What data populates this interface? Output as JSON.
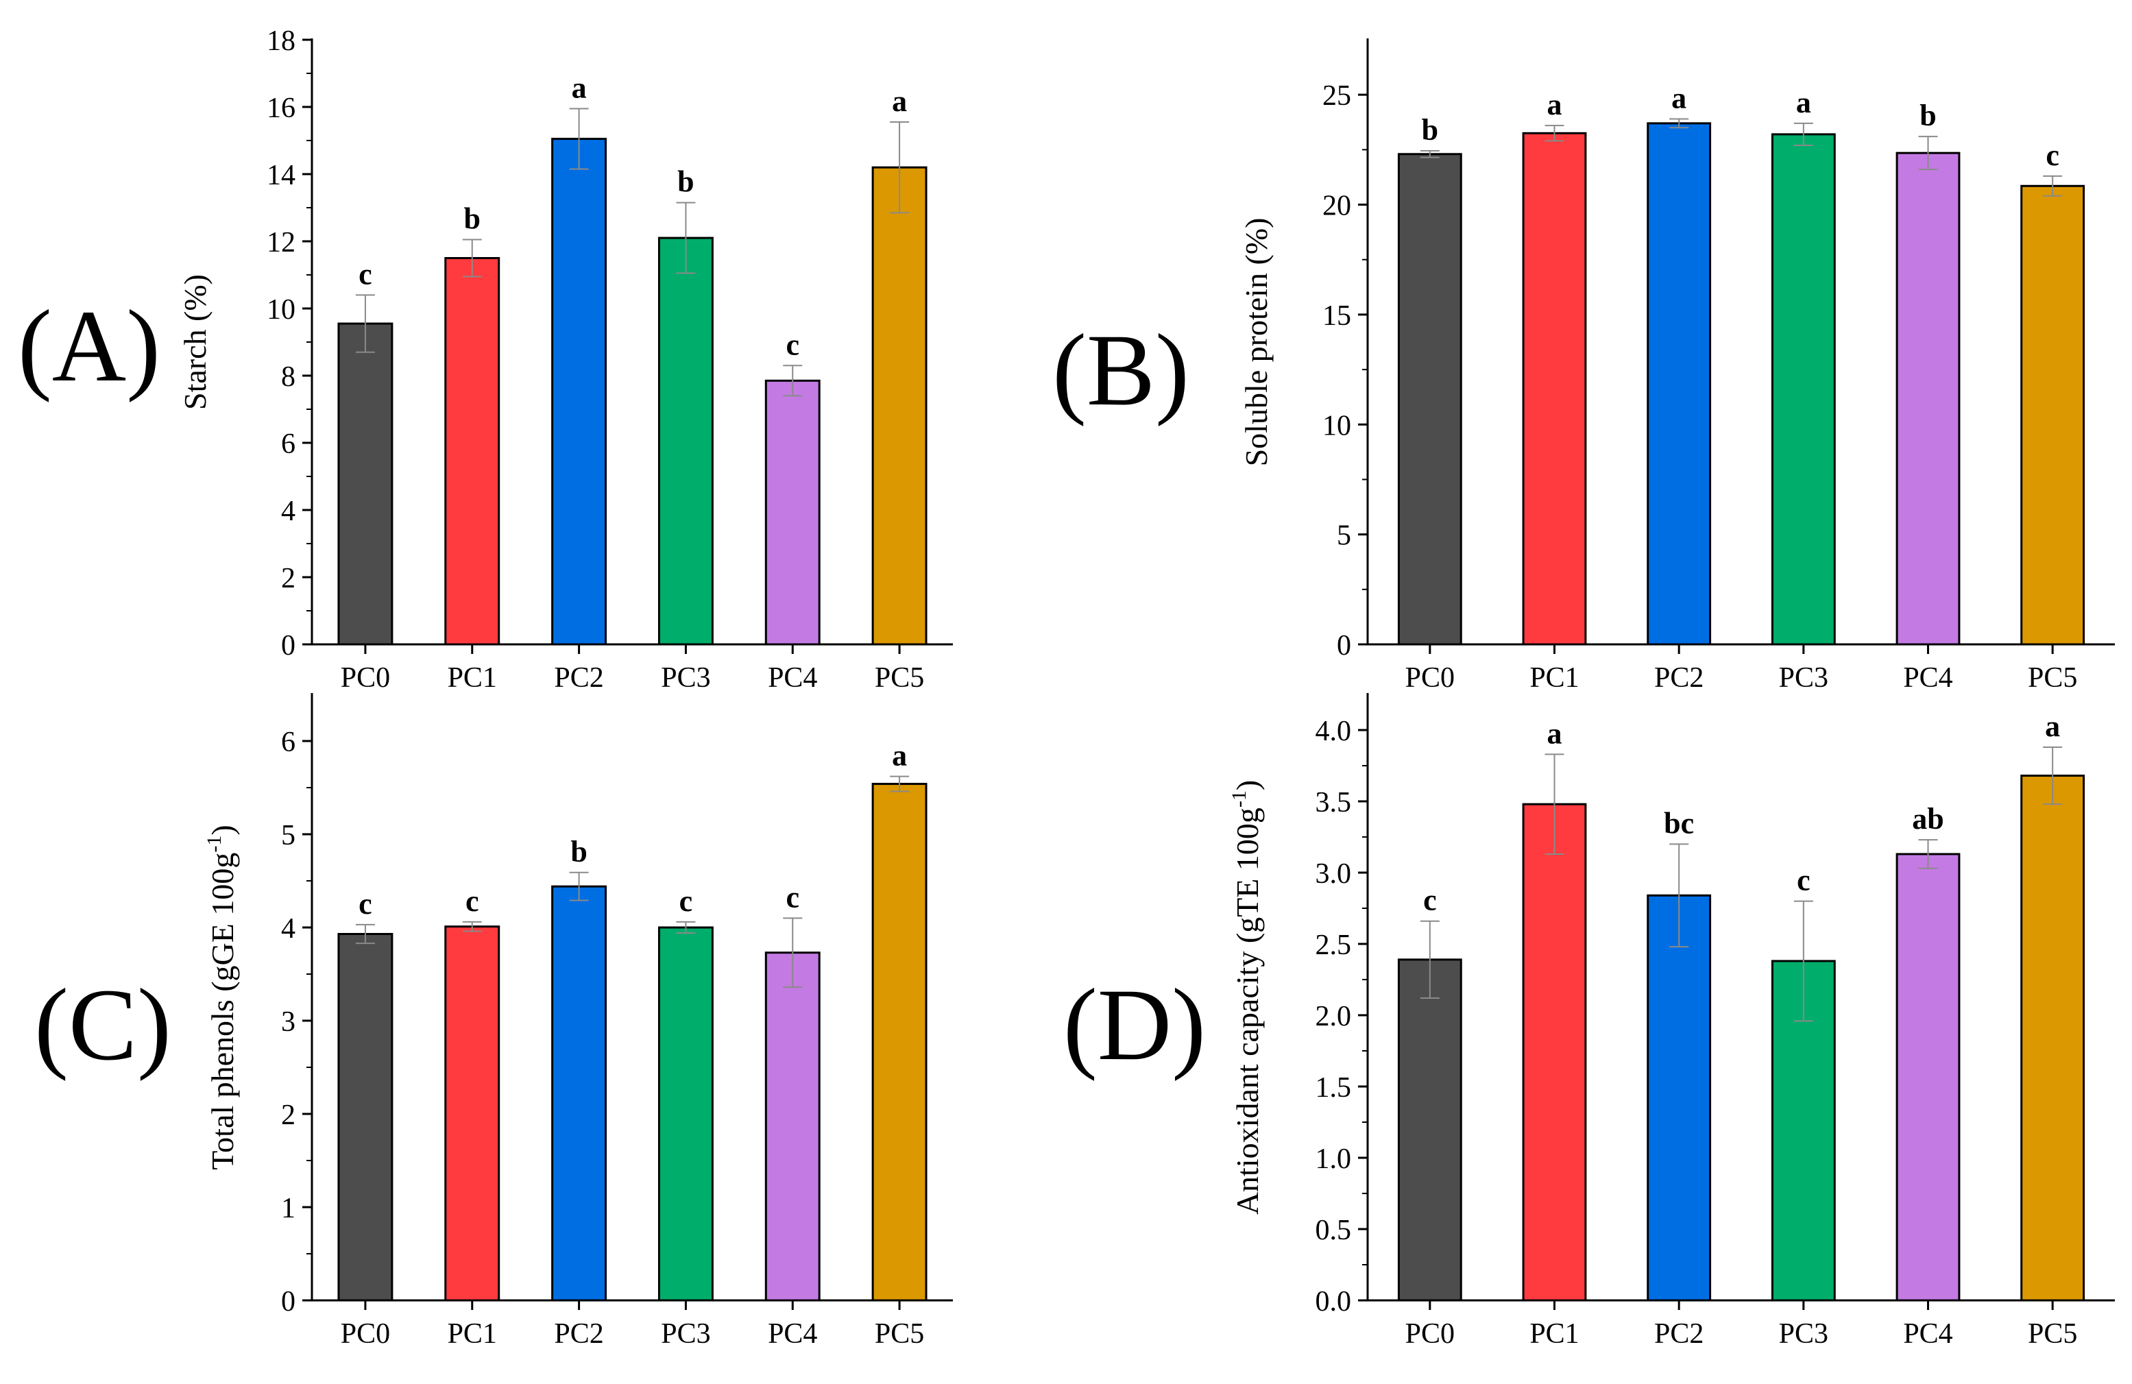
{
  "chart_data": [
    {
      "type": "bar",
      "panel_label": "(A)",
      "ylabel": "Starch (%)",
      "ylabel_superscript": "",
      "ylabel_suffix": "",
      "categories": [
        "PC0",
        "PC1",
        "PC2",
        "PC3",
        "PC4",
        "PC5"
      ],
      "values": [
        9.55,
        11.5,
        15.05,
        12.1,
        7.85,
        14.2
      ],
      "errors": [
        0.85,
        0.55,
        0.9,
        1.05,
        0.45,
        1.35
      ],
      "significance": [
        "c",
        "b",
        "a",
        "b",
        "c",
        "a"
      ],
      "ylim": [
        0,
        18
      ],
      "yticks": [
        0,
        2,
        4,
        6,
        8,
        10,
        12,
        14,
        16,
        18
      ],
      "ytick_labels": [
        "0",
        "2",
        "4",
        "6",
        "8",
        "10",
        "12",
        "14",
        "16",
        "18"
      ]
    },
    {
      "type": "bar",
      "panel_label": "(B)",
      "ylabel": "Soluble protein (%)",
      "ylabel_superscript": "",
      "ylabel_suffix": "",
      "categories": [
        "PC0",
        "PC1",
        "PC2",
        "PC3",
        "PC4",
        "PC5"
      ],
      "values": [
        22.3,
        23.25,
        23.7,
        23.2,
        22.35,
        20.85
      ],
      "errors": [
        0.15,
        0.35,
        0.2,
        0.5,
        0.75,
        0.45
      ],
      "significance": [
        "b",
        "a",
        "a",
        "a",
        "b",
        "c"
      ],
      "ylim": [
        0,
        27.5
      ],
      "yticks": [
        0,
        5,
        10,
        15,
        20,
        25
      ],
      "ytick_labels": [
        "0",
        "5",
        "10",
        "15",
        "20",
        "25"
      ]
    },
    {
      "type": "bar",
      "panel_label": "(C)",
      "ylabel": "Total phenols (gGE 100g",
      "ylabel_superscript": "-1",
      "ylabel_suffix": ")",
      "categories": [
        "PC0",
        "PC1",
        "PC2",
        "PC3",
        "PC4",
        "PC5"
      ],
      "values": [
        3.93,
        4.01,
        4.44,
        4.0,
        3.73,
        5.54
      ],
      "errors": [
        0.1,
        0.05,
        0.15,
        0.06,
        0.37,
        0.08
      ],
      "significance": [
        "c",
        "c",
        "b",
        "c",
        "c",
        "a"
      ],
      "ylim": [
        0,
        6.5
      ],
      "yticks": [
        0,
        1,
        2,
        3,
        4,
        5,
        6
      ],
      "ytick_labels": [
        "0",
        "1",
        "2",
        "3",
        "4",
        "5",
        "6"
      ]
    },
    {
      "type": "bar",
      "panel_label": "(D)",
      "ylabel": "Antioxidant capacity (gTE 100g",
      "ylabel_superscript": "-1",
      "ylabel_suffix": ")",
      "categories": [
        "PC0",
        "PC1",
        "PC2",
        "PC3",
        "PC4",
        "PC5"
      ],
      "values": [
        2.39,
        3.48,
        2.84,
        2.38,
        3.13,
        3.68
      ],
      "errors": [
        0.27,
        0.35,
        0.36,
        0.42,
        0.1,
        0.2
      ],
      "significance": [
        "c",
        "a",
        "bc",
        "c",
        "ab",
        "a"
      ],
      "ylim": [
        0,
        4.25
      ],
      "yticks": [
        0,
        0.5,
        1,
        1.5,
        2,
        2.5,
        3,
        3.5,
        4
      ],
      "ytick_labels": [
        "0.0",
        "0.5",
        "1.0",
        "1.5",
        "2.0",
        "2.5",
        "3.0",
        "3.5",
        "4.0"
      ]
    }
  ],
  "colors": {
    "bars": [
      "#4d4d4d",
      "#ff3b3f",
      "#006ee3",
      "#00ad6a",
      "#c47ae3",
      "#db9800"
    ],
    "axis": "#000000",
    "error_bar": "#8a8a8a"
  }
}
